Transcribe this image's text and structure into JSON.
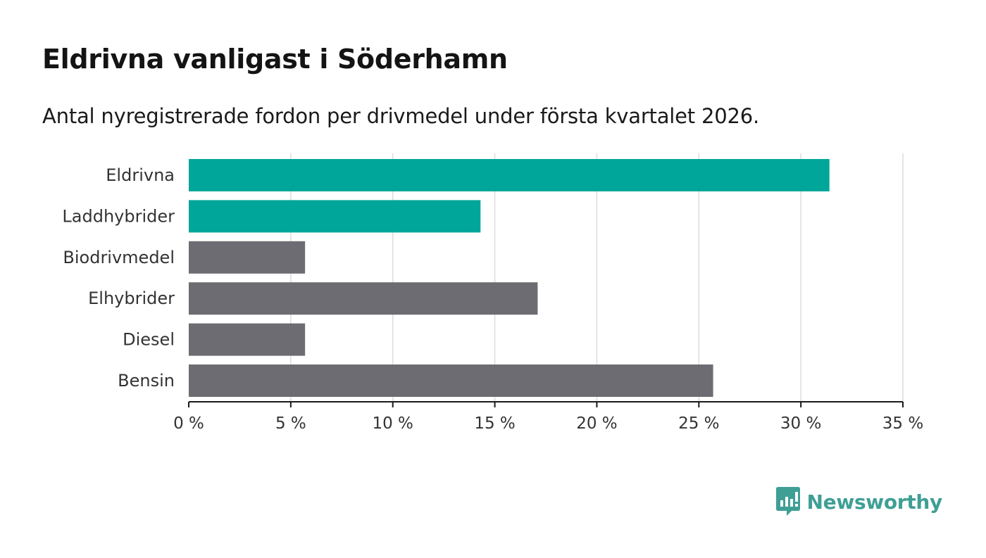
{
  "header": {
    "title": "Eldrivna vanligast i Söderhamn",
    "subtitle": "Antal nyregistrerade fordon per drivmedel under första kvartalet 2026."
  },
  "colors": {
    "highlight": "#00a69a",
    "default": "#6d6c72",
    "grid": "#dcdcdc",
    "axis": "#1a1a1a",
    "brand": "#3f9f95"
  },
  "chart_data": {
    "type": "bar",
    "orientation": "horizontal",
    "title": "Eldrivna vanligast i Söderhamn",
    "subtitle": "Antal nyregistrerade fordon per drivmedel under första kvartalet 2026.",
    "categories": [
      "Eldrivna",
      "Laddhybrider",
      "Biodrivmedel",
      "Elhybrider",
      "Diesel",
      "Bensin"
    ],
    "values": [
      31.4,
      14.3,
      5.7,
      17.1,
      5.7,
      25.7
    ],
    "highlighted": [
      true,
      true,
      false,
      false,
      false,
      false
    ],
    "unit": "%",
    "xlim": [
      0,
      35
    ],
    "xticks": [
      0,
      5,
      10,
      15,
      20,
      25,
      30,
      35
    ],
    "xtick_labels": [
      "0 %",
      "5 %",
      "10 %",
      "15 %",
      "20 %",
      "25 %",
      "30 %",
      "35 %"
    ],
    "xlabel": "",
    "ylabel": "",
    "grid": "vertical"
  },
  "brand": {
    "name": "Newsworthy",
    "icon": "bar-chart-speech-bubble-icon"
  }
}
